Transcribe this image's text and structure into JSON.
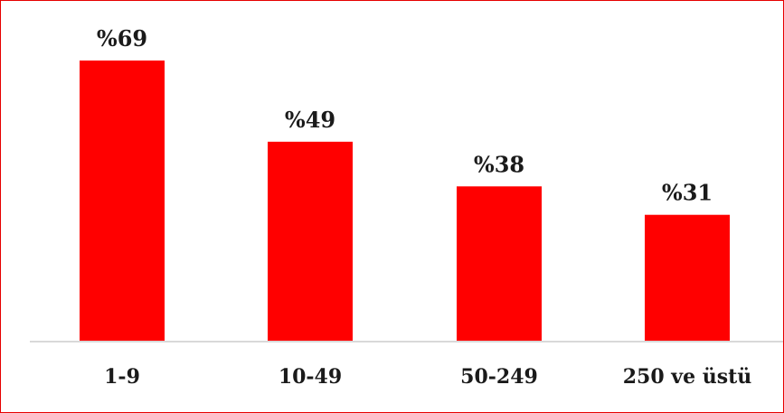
{
  "chart_data": {
    "type": "bar",
    "categories": [
      "1-9",
      "10-49",
      "50-249",
      "250 ve üstü"
    ],
    "values": [
      69,
      49,
      38,
      31
    ],
    "data_labels": [
      "%69",
      "%49",
      "%38",
      "%31"
    ],
    "title": "",
    "xlabel": "",
    "ylabel": "",
    "ylim": [
      0,
      75
    ],
    "grid": false,
    "legend": "none",
    "colors": {
      "bar": "#ff0000",
      "frame": "#e60000",
      "axis": "#d9d9d9",
      "text": "#1a1a1a"
    }
  }
}
